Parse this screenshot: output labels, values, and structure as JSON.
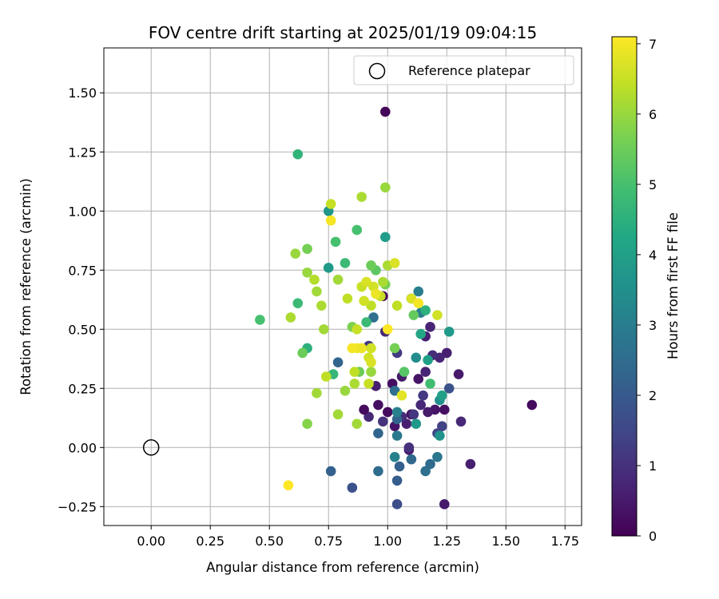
{
  "chart_data": {
    "type": "scatter",
    "title": "FOV centre drift starting at 2025/01/19 09:04:15",
    "xlabel": "Angular distance from reference (arcmin)",
    "ylabel": "Rotation from reference (arcmin)",
    "xlim": [
      -0.2,
      1.82
    ],
    "ylim": [
      -0.33,
      1.69
    ],
    "xticks": [
      "0.00",
      "0.25",
      "0.50",
      "0.75",
      "1.00",
      "1.25",
      "1.50",
      "1.75"
    ],
    "yticks": [
      "−0.25",
      "0.00",
      "0.25",
      "0.50",
      "0.75",
      "1.00",
      "1.25",
      "1.50"
    ],
    "grid": true,
    "legend": {
      "label": "Reference platepar",
      "placement": "top-right",
      "marker": "hollow-circle"
    },
    "reference_point": {
      "x": 0.0,
      "y": 0.0
    },
    "colorbar": {
      "label": "Hours from first FF file",
      "min": 0,
      "max": 7.1,
      "ticks": [
        "0",
        "1",
        "2",
        "3",
        "4",
        "5",
        "6",
        "7"
      ],
      "colormap": "viridis"
    },
    "points": [
      {
        "x": 0.99,
        "y": 1.42,
        "c": 0.1
      },
      {
        "x": 1.61,
        "y": 0.18,
        "c": 0.2
      },
      {
        "x": 1.35,
        "y": -0.07,
        "c": 0.6
      },
      {
        "x": 1.24,
        "y": -0.24,
        "c": 0.5
      },
      {
        "x": 1.3,
        "y": 0.31,
        "c": 0.5
      },
      {
        "x": 1.31,
        "y": 0.11,
        "c": 0.8
      },
      {
        "x": 1.25,
        "y": 0.4,
        "c": 0.6
      },
      {
        "x": 1.22,
        "y": 0.38,
        "c": 0.7
      },
      {
        "x": 1.19,
        "y": 0.39,
        "c": 0.9
      },
      {
        "x": 1.18,
        "y": 0.51,
        "c": 0.7
      },
      {
        "x": 1.16,
        "y": 0.47,
        "c": 0.6
      },
      {
        "x": 1.24,
        "y": 0.16,
        "c": 0.3
      },
      {
        "x": 1.2,
        "y": 0.16,
        "c": 0.4
      },
      {
        "x": 1.17,
        "y": 0.15,
        "c": 0.5
      },
      {
        "x": 1.14,
        "y": 0.18,
        "c": 0.8
      },
      {
        "x": 1.1,
        "y": 0.14,
        "c": 0.3
      },
      {
        "x": 1.08,
        "y": 0.1,
        "c": 0.6
      },
      {
        "x": 1.06,
        "y": 0.13,
        "c": 0.9
      },
      {
        "x": 1.03,
        "y": 0.09,
        "c": 0.4
      },
      {
        "x": 1.0,
        "y": 0.15,
        "c": 0.2
      },
      {
        "x": 0.98,
        "y": 0.11,
        "c": 1.0
      },
      {
        "x": 0.96,
        "y": 0.18,
        "c": 0.3
      },
      {
        "x": 0.92,
        "y": 0.13,
        "c": 0.8
      },
      {
        "x": 0.9,
        "y": 0.16,
        "c": 0.2
      },
      {
        "x": 1.02,
        "y": 0.27,
        "c": 0.3
      },
      {
        "x": 1.06,
        "y": 0.3,
        "c": 0.5
      },
      {
        "x": 1.13,
        "y": 0.29,
        "c": 0.4
      },
      {
        "x": 1.16,
        "y": 0.32,
        "c": 0.7
      },
      {
        "x": 0.95,
        "y": 0.26,
        "c": 0.6
      },
      {
        "x": 1.04,
        "y": 0.4,
        "c": 1.2
      },
      {
        "x": 0.92,
        "y": 0.43,
        "c": 1.1
      },
      {
        "x": 0.98,
        "y": 0.64,
        "c": 0.1
      },
      {
        "x": 0.99,
        "y": 0.49,
        "c": 0.8
      },
      {
        "x": 1.09,
        "y": -0.01,
        "c": 0.5
      },
      {
        "x": 1.09,
        "y": 0.0,
        "c": 1.0
      },
      {
        "x": 1.11,
        "y": 0.14,
        "c": 1.1
      },
      {
        "x": 1.21,
        "y": 0.06,
        "c": 1.5
      },
      {
        "x": 1.23,
        "y": 0.09,
        "c": 1.4
      },
      {
        "x": 1.15,
        "y": 0.22,
        "c": 1.2
      },
      {
        "x": 1.26,
        "y": 0.25,
        "c": 1.8
      },
      {
        "x": 1.04,
        "y": -0.24,
        "c": 1.7
      },
      {
        "x": 1.04,
        "y": -0.14,
        "c": 2.1
      },
      {
        "x": 0.85,
        "y": -0.17,
        "c": 1.8
      },
      {
        "x": 0.76,
        "y": -0.1,
        "c": 2.2
      },
      {
        "x": 0.96,
        "y": -0.1,
        "c": 2.5
      },
      {
        "x": 1.05,
        "y": -0.08,
        "c": 2.2
      },
      {
        "x": 1.1,
        "y": -0.05,
        "c": 2.4
      },
      {
        "x": 1.16,
        "y": -0.1,
        "c": 2.6
      },
      {
        "x": 1.18,
        "y": -0.07,
        "c": 2.5
      },
      {
        "x": 1.21,
        "y": -0.04,
        "c": 2.8
      },
      {
        "x": 1.03,
        "y": -0.04,
        "c": 3.1
      },
      {
        "x": 1.04,
        "y": 0.05,
        "c": 2.9
      },
      {
        "x": 1.04,
        "y": 0.12,
        "c": 2.3
      },
      {
        "x": 0.96,
        "y": 0.06,
        "c": 2.3
      },
      {
        "x": 1.04,
        "y": 0.15,
        "c": 3.1
      },
      {
        "x": 1.12,
        "y": 0.1,
        "c": 3.8
      },
      {
        "x": 1.22,
        "y": 0.2,
        "c": 3.5
      },
      {
        "x": 1.23,
        "y": 0.22,
        "c": 4.0
      },
      {
        "x": 1.22,
        "y": 0.05,
        "c": 3.6
      },
      {
        "x": 1.12,
        "y": 0.38,
        "c": 3.4
      },
      {
        "x": 1.17,
        "y": 0.37,
        "c": 4.0
      },
      {
        "x": 1.03,
        "y": 0.24,
        "c": 2.6
      },
      {
        "x": 0.79,
        "y": 0.36,
        "c": 2.3
      },
      {
        "x": 1.13,
        "y": 0.66,
        "c": 3.0
      },
      {
        "x": 1.14,
        "y": 0.57,
        "c": 3.0
      },
      {
        "x": 1.26,
        "y": 0.49,
        "c": 3.8
      },
      {
        "x": 1.14,
        "y": 0.48,
        "c": 4.2
      },
      {
        "x": 1.1,
        "y": 0.63,
        "c": 3.4
      },
      {
        "x": 0.94,
        "y": 0.55,
        "c": 2.6
      },
      {
        "x": 0.99,
        "y": 0.89,
        "c": 3.9
      },
      {
        "x": 0.75,
        "y": 0.76,
        "c": 3.8
      },
      {
        "x": 0.75,
        "y": 1.0,
        "c": 3.7
      },
      {
        "x": 0.62,
        "y": 1.24,
        "c": 4.6
      },
      {
        "x": 0.46,
        "y": 0.54,
        "c": 5.0
      },
      {
        "x": 0.66,
        "y": 0.42,
        "c": 4.5
      },
      {
        "x": 0.77,
        "y": 0.31,
        "c": 4.7
      },
      {
        "x": 0.82,
        "y": 0.78,
        "c": 4.8
      },
      {
        "x": 0.78,
        "y": 0.87,
        "c": 5.0
      },
      {
        "x": 0.87,
        "y": 0.92,
        "c": 5.0
      },
      {
        "x": 0.62,
        "y": 0.61,
        "c": 4.8
      },
      {
        "x": 0.91,
        "y": 0.53,
        "c": 4.8
      },
      {
        "x": 1.07,
        "y": 0.32,
        "c": 5.2
      },
      {
        "x": 1.18,
        "y": 0.27,
        "c": 4.9
      },
      {
        "x": 0.95,
        "y": 0.75,
        "c": 5.3
      },
      {
        "x": 1.11,
        "y": 0.56,
        "c": 5.4
      },
      {
        "x": 1.16,
        "y": 0.58,
        "c": 4.5
      },
      {
        "x": 0.64,
        "y": 0.4,
        "c": 5.5
      },
      {
        "x": 0.93,
        "y": 0.77,
        "c": 5.5
      },
      {
        "x": 1.03,
        "y": 0.42,
        "c": 5.6
      },
      {
        "x": 0.66,
        "y": 0.84,
        "c": 5.6
      },
      {
        "x": 0.85,
        "y": 0.51,
        "c": 5.7
      },
      {
        "x": 0.88,
        "y": 0.32,
        "c": 5.5
      },
      {
        "x": 0.99,
        "y": 0.69,
        "c": 5.6
      },
      {
        "x": 0.66,
        "y": 0.1,
        "c": 5.8
      },
      {
        "x": 0.61,
        "y": 0.82,
        "c": 6.0
      },
      {
        "x": 0.66,
        "y": 0.74,
        "c": 6.0
      },
      {
        "x": 0.7,
        "y": 0.66,
        "c": 6.1
      },
      {
        "x": 0.69,
        "y": 0.71,
        "c": 6.3
      },
      {
        "x": 0.72,
        "y": 0.6,
        "c": 6.2
      },
      {
        "x": 0.73,
        "y": 0.5,
        "c": 6.1
      },
      {
        "x": 0.74,
        "y": 0.3,
        "c": 6.4
      },
      {
        "x": 0.7,
        "y": 0.23,
        "c": 6.1
      },
      {
        "x": 0.79,
        "y": 0.14,
        "c": 6.1
      },
      {
        "x": 0.82,
        "y": 0.24,
        "c": 6.0
      },
      {
        "x": 0.86,
        "y": 0.27,
        "c": 6.2
      },
      {
        "x": 0.86,
        "y": 0.32,
        "c": 6.4
      },
      {
        "x": 0.87,
        "y": 0.1,
        "c": 6.1
      },
      {
        "x": 0.89,
        "y": 0.68,
        "c": 6.5
      },
      {
        "x": 0.89,
        "y": 1.06,
        "c": 6.2
      },
      {
        "x": 0.99,
        "y": 1.1,
        "c": 6.0
      },
      {
        "x": 0.76,
        "y": 1.03,
        "c": 6.5
      },
      {
        "x": 0.79,
        "y": 0.71,
        "c": 6.1
      },
      {
        "x": 0.83,
        "y": 0.63,
        "c": 6.4
      },
      {
        "x": 0.87,
        "y": 0.5,
        "c": 6.5
      },
      {
        "x": 0.92,
        "y": 0.38,
        "c": 6.6
      },
      {
        "x": 0.93,
        "y": 0.32,
        "c": 6.0
      },
      {
        "x": 0.93,
        "y": 0.6,
        "c": 6.4
      },
      {
        "x": 0.9,
        "y": 0.62,
        "c": 6.6
      },
      {
        "x": 0.91,
        "y": 0.7,
        "c": 6.7
      },
      {
        "x": 0.94,
        "y": 0.68,
        "c": 6.6
      },
      {
        "x": 0.97,
        "y": 0.64,
        "c": 6.5
      },
      {
        "x": 0.98,
        "y": 0.7,
        "c": 6.2
      },
      {
        "x": 1.0,
        "y": 0.77,
        "c": 6.2
      },
      {
        "x": 1.04,
        "y": 0.6,
        "c": 6.4
      },
      {
        "x": 1.03,
        "y": 0.78,
        "c": 6.7
      },
      {
        "x": 1.1,
        "y": 0.63,
        "c": 6.7
      },
      {
        "x": 1.13,
        "y": 0.61,
        "c": 7.0
      },
      {
        "x": 1.06,
        "y": 0.22,
        "c": 6.8
      },
      {
        "x": 1.21,
        "y": 0.56,
        "c": 6.6
      },
      {
        "x": 0.93,
        "y": 0.42,
        "c": 6.6
      },
      {
        "x": 0.92,
        "y": 0.27,
        "c": 6.5
      },
      {
        "x": 0.85,
        "y": 0.42,
        "c": 7.0
      },
      {
        "x": 0.87,
        "y": 0.42,
        "c": 7.0
      },
      {
        "x": 0.89,
        "y": 0.42,
        "c": 6.9
      },
      {
        "x": 0.93,
        "y": 0.36,
        "c": 6.7
      },
      {
        "x": 0.76,
        "y": 0.96,
        "c": 7.0
      },
      {
        "x": 0.95,
        "y": 0.65,
        "c": 6.9
      },
      {
        "x": 0.58,
        "y": -0.16,
        "c": 7.1
      },
      {
        "x": 1.0,
        "y": 0.5,
        "c": 7.1
      },
      {
        "x": 0.59,
        "y": 0.55,
        "c": 6.2
      }
    ]
  }
}
